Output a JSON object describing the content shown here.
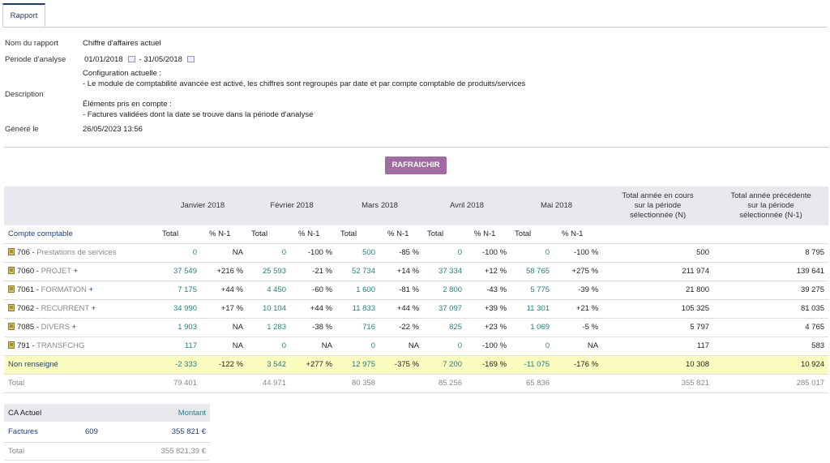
{
  "tab": "Rapport",
  "info": {
    "name": {
      "label": "Nom du rapport",
      "value": "Chiffre d'affaires actuel"
    },
    "period": {
      "label": "Période d'analyse",
      "start": "01/01/2018",
      "sep": "-",
      "end": "31/05/2018"
    },
    "description": {
      "label": "Description",
      "blocks": [
        [
          "Configuration actuelle :",
          "- Le module de comptabilité avancée est activé, les chiffres sont regroupés par date et par compte comptable de produits/services"
        ],
        [
          "Éléments pris en compte :",
          "- Factures validées dont la date se trouve dans la période d'analyse"
        ]
      ]
    },
    "generated": {
      "label": "Généré le",
      "value": "26/05/2023 13:56"
    }
  },
  "button": "RAFRAICHIR",
  "table": {
    "months": [
      "Janvier 2018",
      "Février 2018",
      "Mars 2018",
      "Avril 2018",
      "Mai 2018"
    ],
    "total_current": [
      "Total année en cours",
      "sur la période",
      "sélectionnée (N)"
    ],
    "total_previous": [
      "Total année précédente",
      "sur la période",
      "sélectionnée (N-1)"
    ],
    "account_header": "Compte comptable",
    "subheaders": [
      "Total",
      "% N-1"
    ],
    "rows": [
      {
        "code": "706 -",
        "name": "Prestations de services",
        "cells": [
          "0",
          "NA",
          "0",
          "-100 %",
          "500",
          "-85 %",
          "0",
          "-100 %",
          "0",
          "-100 %",
          "500",
          "8 795"
        ]
      },
      {
        "code": "7060 -",
        "name": "PROJET",
        "plus": "+",
        "cells": [
          "37 549",
          "+216 %",
          "25 593",
          "-21 %",
          "52 734",
          "+14 %",
          "37 334",
          "+12 %",
          "58 765",
          "+275 %",
          "211 974",
          "139 641"
        ]
      },
      {
        "code": "7061 -",
        "name": "FORMATION",
        "plus": "+",
        "cells": [
          "7 175",
          "+44 %",
          "4 450",
          "-60 %",
          "1 600",
          "-81 %",
          "2 800",
          "-43 %",
          "5 775",
          "-39 %",
          "21 800",
          "39 275"
        ]
      },
      {
        "code": "7062 -",
        "name": "RECURRENT",
        "plus": "+",
        "cells": [
          "34 990",
          "+17 %",
          "10 104",
          "+44 %",
          "11 833",
          "+44 %",
          "37 097",
          "+39 %",
          "11 301",
          "+21 %",
          "105 325",
          "81 035"
        ]
      },
      {
        "code": "7085 -",
        "name": "DIVERS",
        "plus": "+",
        "cells": [
          "1 903",
          "NA",
          "1 283",
          "-38 %",
          "716",
          "-22 %",
          "825",
          "+23 %",
          "1 069",
          "-5 %",
          "5 797",
          "4 765"
        ]
      },
      {
        "code": "791 -",
        "name": "TRANSFCHG",
        "cells": [
          "117",
          "NA",
          "0",
          "NA",
          "0",
          "NA",
          "0",
          "-100 %",
          "0",
          "NA",
          "117",
          "583"
        ]
      }
    ],
    "unassigned": {
      "label": "Non renseigné",
      "cells": [
        "-2 333",
        "-122 %",
        "3 542",
        "+277 %",
        "12 975",
        "-375 %",
        "7 200",
        "-169 %",
        "-11 075",
        "-176 %",
        "10 308",
        "10 924"
      ]
    },
    "total": {
      "label": "Total",
      "months": [
        "79 401",
        "44 971",
        "80 358",
        "85 256",
        "65 836"
      ],
      "current": "355 821",
      "previous": "285 017"
    }
  },
  "summary": {
    "headers": [
      "CA Actuel",
      "Montant"
    ],
    "row": {
      "label": "Factures",
      "count": "609",
      "amount": "355 821 €"
    },
    "total": {
      "label": "Total",
      "amount": "355 821,39 €"
    }
  }
}
